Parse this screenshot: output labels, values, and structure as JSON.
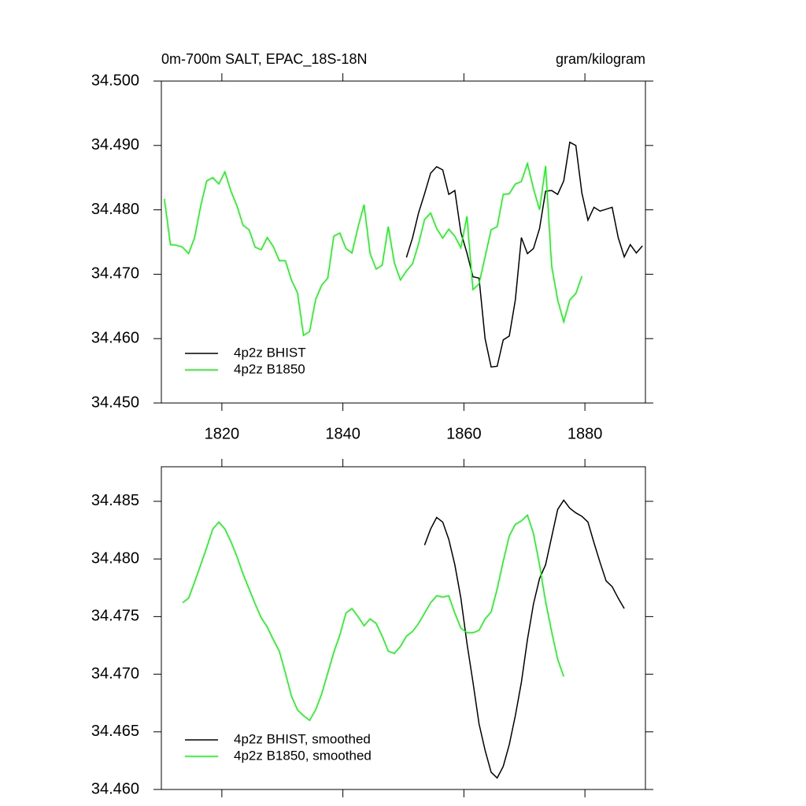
{
  "chart_data": [
    {
      "type": "line",
      "title": "0m-700m SALT, EPAC_18S-18N",
      "units": "gram/kilogram",
      "xlim": [
        1810,
        1890
      ],
      "ylim": [
        34.45,
        34.5
      ],
      "xticks": [
        1820,
        1840,
        1860,
        1880
      ],
      "yticks": [
        {
          "value": 34.45,
          "label": "34.450"
        },
        {
          "value": 34.46,
          "label": "34.460"
        },
        {
          "value": 34.47,
          "label": "34.470"
        },
        {
          "value": 34.48,
          "label": "34.480"
        },
        {
          "value": 34.49,
          "label": "34.490"
        },
        {
          "value": 34.5,
          "label": "34.500"
        }
      ],
      "legend": "lower left",
      "series": [
        {
          "name": "4p2z BHIST",
          "color": "#000000",
          "x": [
            1850.5,
            1851.5,
            1852.5,
            1853.5,
            1854.5,
            1855.5,
            1856.5,
            1857.5,
            1858.5,
            1859.5,
            1860.5,
            1861.5,
            1862.5,
            1863.5,
            1864.5,
            1865.5,
            1866.5,
            1867.5,
            1868.5,
            1869.5,
            1870.5,
            1871.5,
            1872.5,
            1873.5,
            1874.5,
            1875.5,
            1876.5,
            1877.5,
            1878.5,
            1879.5,
            1880.5,
            1881.5,
            1882.5,
            1883.5,
            1884.5,
            1885.5,
            1886.5,
            1887.5,
            1888.5,
            1889.5
          ],
          "values": [
            34.4726,
            34.4756,
            34.4795,
            34.4825,
            34.4857,
            34.4867,
            34.4862,
            34.4824,
            34.483,
            34.4765,
            34.4733,
            34.4696,
            34.4694,
            34.46,
            34.4556,
            34.4557,
            34.4598,
            34.4604,
            34.466,
            34.4757,
            34.4732,
            34.474,
            34.4771,
            34.4829,
            34.483,
            34.4824,
            34.4845,
            34.4905,
            34.49,
            34.4826,
            34.4784,
            34.4804,
            34.4798,
            34.4801,
            34.4804,
            34.4757,
            34.4727,
            34.4746,
            34.4733,
            34.4744
          ]
        },
        {
          "name": "4p2z B1850",
          "color": "#00ff00",
          "x": [
            1810.5,
            1811.5,
            1812.5,
            1813.5,
            1814.5,
            1815.5,
            1816.5,
            1817.5,
            1818.5,
            1819.5,
            1820.5,
            1821.5,
            1822.5,
            1823.5,
            1824.5,
            1825.5,
            1826.5,
            1827.5,
            1828.5,
            1829.5,
            1830.5,
            1831.5,
            1832.5,
            1833.5,
            1834.5,
            1835.5,
            1836.5,
            1837.5,
            1838.5,
            1839.5,
            1840.5,
            1841.5,
            1842.5,
            1843.5,
            1844.5,
            1845.5,
            1846.5,
            1847.5,
            1848.5,
            1849.5,
            1850.5,
            1851.5,
            1852.5,
            1853.5,
            1854.5,
            1855.5,
            1856.5,
            1857.5,
            1858.5,
            1859.5,
            1860.5,
            1861.5,
            1862.5,
            1863.5,
            1864.5,
            1865.5,
            1866.5,
            1867.5,
            1868.5,
            1869.5,
            1870.5,
            1871.5,
            1872.5,
            1873.5,
            1874.5,
            1875.5,
            1876.5,
            1877.5,
            1878.5,
            1879.5
          ],
          "values": [
            34.4817,
            34.4746,
            34.4745,
            34.4742,
            34.4732,
            34.4757,
            34.4806,
            34.4845,
            34.485,
            34.484,
            34.4859,
            34.4829,
            34.4806,
            34.4776,
            34.4769,
            34.4742,
            34.4738,
            34.4757,
            34.4743,
            34.4721,
            34.4721,
            34.4691,
            34.4671,
            34.4605,
            34.4611,
            34.4661,
            34.4683,
            34.4694,
            34.4759,
            34.4764,
            34.474,
            34.4733,
            34.4773,
            34.4808,
            34.4732,
            34.4708,
            34.4714,
            34.4774,
            34.4718,
            34.4691,
            34.4705,
            34.4716,
            34.4747,
            34.4785,
            34.4795,
            34.4771,
            34.4756,
            34.477,
            34.4759,
            34.4741,
            34.479,
            34.4676,
            34.4685,
            34.4727,
            34.4769,
            34.4774,
            34.4824,
            34.4825,
            34.484,
            34.4844,
            34.4872,
            34.4833,
            34.48,
            34.4868,
            34.4713,
            34.466,
            34.4626,
            34.466,
            34.467,
            34.4697
          ]
        }
      ]
    },
    {
      "type": "line",
      "xlim": [
        1810,
        1890
      ],
      "ylim": [
        34.46,
        34.488
      ],
      "xticks": [
        1820,
        1840,
        1860,
        1880
      ],
      "show_xtick_labels": false,
      "yticks": [
        {
          "value": 34.46,
          "label": "34.460"
        },
        {
          "value": 34.465,
          "label": "34.465"
        },
        {
          "value": 34.47,
          "label": "34.470"
        },
        {
          "value": 34.475,
          "label": "34.475"
        },
        {
          "value": 34.48,
          "label": "34.480"
        },
        {
          "value": 34.485,
          "label": "34.485"
        }
      ],
      "legend": "lower left",
      "series": [
        {
          "name": "4p2z BHIST, smoothed",
          "color": "#000000",
          "x": [
            1853.5,
            1854.5,
            1855.5,
            1856.5,
            1857.5,
            1858.5,
            1859.5,
            1860.5,
            1861.5,
            1862.5,
            1863.5,
            1864.5,
            1865.5,
            1866.5,
            1867.5,
            1868.5,
            1869.5,
            1870.5,
            1871.5,
            1872.5,
            1873.5,
            1874.5,
            1875.5,
            1876.5,
            1877.5,
            1878.5,
            1879.5,
            1880.5,
            1881.5,
            1882.5,
            1883.5,
            1884.5,
            1885.5,
            1886.5
          ],
          "values": [
            34.4812,
            34.4826,
            34.4836,
            34.4832,
            34.4817,
            34.4795,
            34.4766,
            34.4727,
            34.4693,
            34.4657,
            34.4634,
            34.4615,
            34.461,
            34.462,
            34.4639,
            34.4664,
            34.4693,
            34.473,
            34.4761,
            34.4783,
            34.4795,
            34.4819,
            34.4843,
            34.4851,
            34.4844,
            34.484,
            34.4837,
            34.4832,
            34.4814,
            34.4797,
            34.4781,
            34.4776,
            34.4766,
            34.4757
          ]
        },
        {
          "name": "4p2z B1850, smoothed",
          "color": "#00ff00",
          "x": [
            1813.5,
            1814.5,
            1815.5,
            1816.5,
            1817.5,
            1818.5,
            1819.5,
            1820.5,
            1821.5,
            1822.5,
            1823.5,
            1824.5,
            1825.5,
            1826.5,
            1827.5,
            1828.5,
            1829.5,
            1830.5,
            1831.5,
            1832.5,
            1833.5,
            1834.5,
            1835.5,
            1836.5,
            1837.5,
            1838.5,
            1839.5,
            1840.5,
            1841.5,
            1842.5,
            1843.5,
            1844.5,
            1845.5,
            1846.5,
            1847.5,
            1848.5,
            1849.5,
            1850.5,
            1851.5,
            1852.5,
            1853.5,
            1854.5,
            1855.5,
            1856.5,
            1857.5,
            1858.5,
            1859.5,
            1860.5,
            1861.5,
            1862.5,
            1863.5,
            1864.5,
            1865.5,
            1866.5,
            1867.5,
            1868.5,
            1869.5,
            1870.5,
            1871.5,
            1872.5,
            1873.5,
            1874.5,
            1875.5,
            1876.5
          ],
          "values": [
            34.4762,
            34.4766,
            34.478,
            34.4795,
            34.481,
            34.4826,
            34.4832,
            34.4826,
            34.4815,
            34.4802,
            34.4787,
            34.4774,
            34.4761,
            34.4749,
            34.4741,
            34.473,
            34.472,
            34.4701,
            34.4681,
            34.4669,
            34.4664,
            34.466,
            34.4669,
            34.4683,
            34.4701,
            34.4719,
            34.4734,
            34.4753,
            34.4757,
            34.475,
            34.4742,
            34.4748,
            34.4744,
            34.4733,
            34.472,
            34.4718,
            34.4724,
            34.4733,
            34.4737,
            34.4744,
            34.4753,
            34.4762,
            34.4768,
            34.4767,
            34.4768,
            34.4753,
            34.474,
            34.4736,
            34.4736,
            34.4738,
            34.4748,
            34.4754,
            34.4774,
            34.4798,
            34.482,
            34.483,
            34.4833,
            34.4838,
            34.4822,
            34.4795,
            34.4763,
            34.4737,
            34.4713,
            34.4698
          ]
        }
      ]
    }
  ]
}
